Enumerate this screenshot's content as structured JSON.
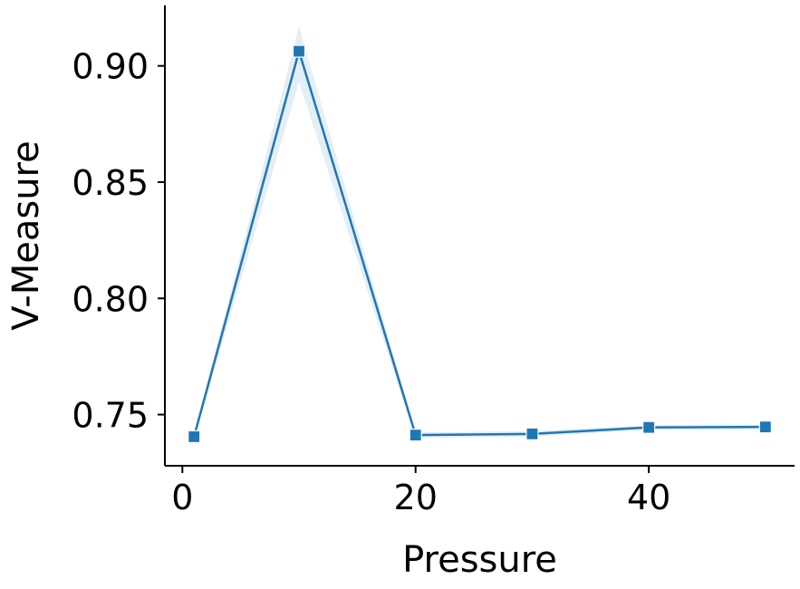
{
  "chart_data": {
    "type": "line",
    "title": "",
    "xlabel": "Pressure",
    "ylabel": "V-Measure",
    "xlim": [
      -1.5,
      52.5
    ],
    "ylim": [
      0.728,
      0.926
    ],
    "x_ticks": [
      0,
      20,
      40
    ],
    "x_tick_labels": [
      "0",
      "20",
      "40"
    ],
    "y_ticks": [
      0.75,
      0.8,
      0.85,
      0.9
    ],
    "y_tick_labels": [
      "0.75",
      "0.80",
      "0.85",
      "0.90"
    ],
    "grid": false,
    "legend": "none",
    "series": [
      {
        "color": "#1f77b4",
        "marker": "square",
        "x": [
          1,
          10,
          20,
          30,
          40,
          50
        ],
        "y": [
          0.7405,
          0.9063,
          0.7412,
          0.7417,
          0.7445,
          0.7447
        ],
        "ci_lower": [
          0.7395,
          0.893,
          0.74,
          0.7405,
          0.7435,
          0.7437
        ],
        "ci_upper": [
          0.7415,
          0.917,
          0.7424,
          0.7429,
          0.7455,
          0.7457
        ]
      }
    ]
  }
}
